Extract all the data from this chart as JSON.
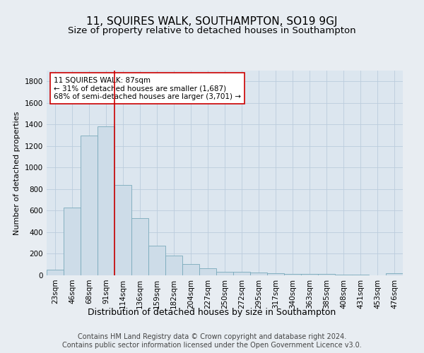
{
  "title": "11, SQUIRES WALK, SOUTHAMPTON, SO19 9GJ",
  "subtitle": "Size of property relative to detached houses in Southampton",
  "xlabel": "Distribution of detached houses by size in Southampton",
  "ylabel": "Number of detached properties",
  "categories": [
    "23sqm",
    "46sqm",
    "68sqm",
    "91sqm",
    "114sqm",
    "136sqm",
    "159sqm",
    "182sqm",
    "204sqm",
    "227sqm",
    "250sqm",
    "272sqm",
    "295sqm",
    "317sqm",
    "340sqm",
    "363sqm",
    "385sqm",
    "408sqm",
    "431sqm",
    "453sqm",
    "476sqm"
  ],
  "values": [
    50,
    630,
    1300,
    1380,
    840,
    530,
    275,
    185,
    105,
    65,
    35,
    30,
    25,
    20,
    15,
    12,
    10,
    8,
    6,
    0,
    20
  ],
  "bar_color": "#cddce8",
  "bar_edge_color": "#7aaabb",
  "vline_x_index": 3,
  "vline_color": "#cc0000",
  "annotation_text": "11 SQUIRES WALK: 87sqm\n← 31% of detached houses are smaller (1,687)\n68% of semi-detached houses are larger (3,701) →",
  "annotation_box_color": "white",
  "annotation_box_edge_color": "#cc0000",
  "ylim": [
    0,
    1900
  ],
  "yticks": [
    0,
    200,
    400,
    600,
    800,
    1000,
    1200,
    1400,
    1600,
    1800
  ],
  "grid_color": "#bbccdd",
  "bg_color": "#e8edf2",
  "plot_bg_color": "#dce6ef",
  "footer_line1": "Contains HM Land Registry data © Crown copyright and database right 2024.",
  "footer_line2": "Contains public sector information licensed under the Open Government Licence v3.0.",
  "title_fontsize": 11,
  "subtitle_fontsize": 9.5,
  "xlabel_fontsize": 9,
  "ylabel_fontsize": 8,
  "tick_fontsize": 7.5,
  "footer_fontsize": 7,
  "annotation_fontsize": 7.5
}
